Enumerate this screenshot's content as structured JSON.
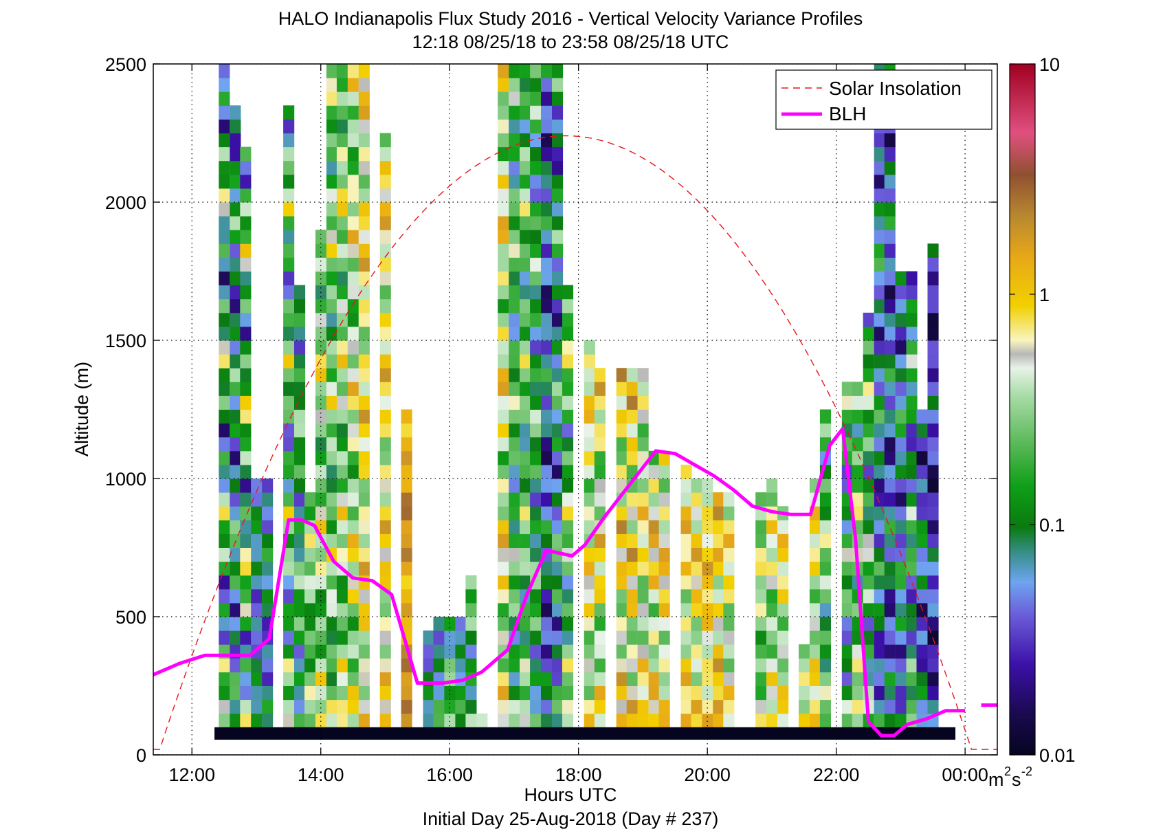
{
  "chart_data": {
    "type": "heatmap",
    "title": "HALO Indianapolis Flux Study 2016 - Vertical Velocity Variance Profiles",
    "subtitle": "12:18 08/25/18 to 23:58 08/25/18  UTC",
    "xlabel": "Hours UTC",
    "xlabel2": "Initial Day 25-Aug-2018 (Day # 237)",
    "ylabel": "Altitude (m)",
    "xlim": [
      11.4,
      24.5
    ],
    "ylim": [
      0,
      2500
    ],
    "x_ticks": [
      12,
      14,
      16,
      18,
      20,
      22,
      24
    ],
    "x_tick_labels": [
      "12:00",
      "14:00",
      "16:00",
      "18:00",
      "20:00",
      "22:00",
      "00:00"
    ],
    "y_ticks": [
      0,
      500,
      1000,
      1500,
      2000,
      2500
    ],
    "y_tick_labels": [
      "0",
      "500",
      "1000",
      "1500",
      "2000",
      "2500"
    ],
    "grid": true,
    "legend_position": "top-right",
    "legend": [
      {
        "label": "Solar Insolation",
        "color": "#e8161a",
        "style": "dashed"
      },
      {
        "label": "BLH",
        "color": "#ff00ff",
        "style": "solid"
      }
    ],
    "colorbar": {
      "scale": "log",
      "range": [
        0.01,
        10
      ],
      "ticks": [
        0.01,
        0.1,
        1,
        10
      ],
      "tick_labels": [
        "0.01",
        "0.1",
        "1",
        "10"
      ],
      "unit_label": "m²s⁻²",
      "unit_base": "m",
      "unit_exp1": "2",
      "unit_mid": "s",
      "unit_exp2": "-2"
    },
    "bin_height_m": 50,
    "profile_width_h": 0.166,
    "profiles": [
      {
        "t": 12.5,
        "top": 2500,
        "base_log": -0.9,
        "amp": 0.9,
        "phase": 0.2
      },
      {
        "t": 12.67,
        "top": 2350,
        "base_log": -1.1,
        "amp": 0.7,
        "phase": 1.1
      },
      {
        "t": 12.83,
        "top": 2200,
        "base_log": -0.8,
        "amp": 0.9,
        "phase": 2.3
      },
      {
        "t": 13.0,
        "top": 1000,
        "base_log": -1.2,
        "amp": 0.4,
        "phase": 0.7
      },
      {
        "t": 13.17,
        "top": 1000,
        "base_log": -1.2,
        "amp": 0.5,
        "phase": 1.9
      },
      {
        "t": 13.5,
        "top": 2350,
        "base_log": -0.8,
        "amp": 0.8,
        "phase": 0.4
      },
      {
        "t": 13.67,
        "top": 1700,
        "base_log": -0.9,
        "amp": 0.6,
        "phase": 2.9
      },
      {
        "t": 13.83,
        "top": 950,
        "base_log": -0.6,
        "amp": 0.5,
        "phase": 1.4
      },
      {
        "t": 14.0,
        "top": 1900,
        "base_log": -0.5,
        "amp": 0.6,
        "phase": 0.8
      },
      {
        "t": 14.17,
        "top": 2500,
        "base_log": -0.6,
        "amp": 0.6,
        "phase": 2.0
      },
      {
        "t": 14.33,
        "top": 2500,
        "base_log": -0.5,
        "amp": 0.6,
        "phase": 0.3
      },
      {
        "t": 14.5,
        "top": 2500,
        "base_log": -0.4,
        "amp": 0.6,
        "phase": 1.6
      },
      {
        "t": 14.67,
        "top": 2500,
        "base_log": -0.2,
        "amp": 0.5,
        "phase": 2.6
      },
      {
        "t": 15.0,
        "top": 2250,
        "base_log": -0.2,
        "amp": 0.5,
        "phase": 0.9
      },
      {
        "t": 15.33,
        "top": 1250,
        "base_log": 0.2,
        "amp": 0.3,
        "phase": 0.1
      },
      {
        "t": 15.67,
        "top": 450,
        "base_log": -1.2,
        "amp": 0.4,
        "phase": 1.2
      },
      {
        "t": 15.83,
        "top": 500,
        "base_log": -1.0,
        "amp": 0.5,
        "phase": 2.2
      },
      {
        "t": 16.0,
        "top": 500,
        "base_log": -0.9,
        "amp": 0.6,
        "phase": 0.6
      },
      {
        "t": 16.17,
        "top": 500,
        "base_log": -1.0,
        "amp": 0.4,
        "phase": 1.8
      },
      {
        "t": 16.33,
        "top": 650,
        "base_log": -0.8,
        "amp": 0.6,
        "phase": 2.7
      },
      {
        "t": 16.5,
        "top": 150,
        "base_log": -0.6,
        "amp": 0.3,
        "phase": 0.5
      },
      {
        "t": 16.83,
        "top": 2500,
        "base_log": -0.3,
        "amp": 0.6,
        "phase": 1.3
      },
      {
        "t": 17.0,
        "top": 2500,
        "base_log": -0.8,
        "amp": 0.6,
        "phase": 2.1
      },
      {
        "t": 17.17,
        "top": 2500,
        "base_log": -0.7,
        "amp": 0.6,
        "phase": 0.4
      },
      {
        "t": 17.33,
        "top": 2500,
        "base_log": -0.9,
        "amp": 0.6,
        "phase": 2.8
      },
      {
        "t": 17.5,
        "top": 2500,
        "base_log": -1.3,
        "amp": 0.6,
        "phase": 1.0
      },
      {
        "t": 17.67,
        "top": 2500,
        "base_log": -1.1,
        "amp": 0.7,
        "phase": 1.7
      },
      {
        "t": 17.83,
        "top": 1700,
        "base_log": -0.7,
        "amp": 0.7,
        "phase": 0.2
      },
      {
        "t": 18.17,
        "top": 1500,
        "base_log": -0.3,
        "amp": 0.5,
        "phase": 2.4
      },
      {
        "t": 18.33,
        "top": 1400,
        "base_log": -0.3,
        "amp": 0.6,
        "phase": 1.5
      },
      {
        "t": 18.67,
        "top": 1400,
        "base_log": -0.2,
        "amp": 0.6,
        "phase": 0.9
      },
      {
        "t": 18.83,
        "top": 1400,
        "base_log": -0.2,
        "amp": 0.6,
        "phase": 2.0
      },
      {
        "t": 19.0,
        "top": 1400,
        "base_log": -0.3,
        "amp": 0.5,
        "phase": 0.3
      },
      {
        "t": 19.17,
        "top": 1100,
        "base_log": -0.2,
        "amp": 0.6,
        "phase": 1.1
      },
      {
        "t": 19.33,
        "top": 1100,
        "base_log": -0.2,
        "amp": 0.5,
        "phase": 2.2
      },
      {
        "t": 19.67,
        "top": 1050,
        "base_log": -0.2,
        "amp": 0.5,
        "phase": 0.7
      },
      {
        "t": 19.83,
        "top": 1000,
        "base_log": -0.2,
        "amp": 0.5,
        "phase": 1.9
      },
      {
        "t": 20.0,
        "top": 1000,
        "base_log": -0.1,
        "amp": 0.4,
        "phase": 2.6
      },
      {
        "t": 20.17,
        "top": 950,
        "base_log": -0.1,
        "amp": 0.5,
        "phase": 0.2
      },
      {
        "t": 20.33,
        "top": 950,
        "base_log": -0.3,
        "amp": 0.5,
        "phase": 1.4
      },
      {
        "t": 20.83,
        "top": 950,
        "base_log": -0.5,
        "amp": 0.5,
        "phase": 2.3
      },
      {
        "t": 21.0,
        "top": 1000,
        "base_log": -0.4,
        "amp": 0.5,
        "phase": 0.8
      },
      {
        "t": 21.17,
        "top": 900,
        "base_log": -0.3,
        "amp": 0.5,
        "phase": 1.6
      },
      {
        "t": 21.5,
        "top": 400,
        "base_log": -0.2,
        "amp": 0.5,
        "phase": 2.9
      },
      {
        "t": 21.67,
        "top": 1000,
        "base_log": -0.3,
        "amp": 0.5,
        "phase": 0.5
      },
      {
        "t": 21.83,
        "top": 1250,
        "base_log": -0.7,
        "amp": 0.6,
        "phase": 1.3
      },
      {
        "t": 22.17,
        "top": 1350,
        "base_log": -0.9,
        "amp": 0.7,
        "phase": 2.0
      },
      {
        "t": 22.33,
        "top": 1350,
        "base_log": -0.6,
        "amp": 0.6,
        "phase": 0.1
      },
      {
        "t": 22.5,
        "top": 1600,
        "base_log": -0.8,
        "amp": 0.7,
        "phase": 1.7
      },
      {
        "t": 22.67,
        "top": 2550,
        "base_log": -1.2,
        "amp": 0.6,
        "phase": 2.5
      },
      {
        "t": 22.83,
        "top": 2500,
        "base_log": -1.3,
        "amp": 0.6,
        "phase": 0.9
      },
      {
        "t": 23.0,
        "top": 1750,
        "base_log": -1.2,
        "amp": 0.6,
        "phase": 2.8
      },
      {
        "t": 23.17,
        "top": 1750,
        "base_log": -1.0,
        "amp": 0.7,
        "phase": 0.4
      },
      {
        "t": 23.33,
        "top": 1250,
        "base_log": -1.3,
        "amp": 0.6,
        "phase": 1.2
      },
      {
        "t": 23.5,
        "top": 1850,
        "base_log": -1.5,
        "amp": 0.5,
        "phase": 2.1
      }
    ],
    "surface_layer": {
      "x_start": 12.35,
      "x_end": 23.85,
      "value": 0.01
    },
    "blh": {
      "x": [
        11.4,
        11.8,
        12.2,
        12.6,
        12.9,
        13.2,
        13.5,
        13.7,
        13.9,
        14.2,
        14.5,
        14.8,
        15.1,
        15.5,
        15.9,
        16.2,
        16.5,
        16.9,
        17.2,
        17.5,
        17.7,
        17.9,
        18.1,
        18.4,
        18.8,
        19.2,
        19.5,
        19.8,
        20.1,
        20.4,
        20.7,
        21.0,
        21.3,
        21.6,
        21.9,
        22.1,
        22.3,
        22.5,
        22.7,
        22.9,
        23.1,
        23.4,
        23.7,
        24.0
      ],
      "y": [
        290,
        330,
        360,
        360,
        360,
        420,
        850,
        850,
        830,
        700,
        640,
        630,
        580,
        260,
        260,
        270,
        300,
        380,
        580,
        740,
        730,
        720,
        760,
        860,
        980,
        1100,
        1090,
        1050,
        1010,
        960,
        900,
        880,
        870,
        870,
        1120,
        1180,
        780,
        120,
        70,
        70,
        110,
        130,
        160,
        160
      ]
    },
    "blh_tail": {
      "x": [
        24.25,
        24.5
      ],
      "y": [
        180,
        180
      ]
    },
    "solar_insolation": {
      "peak_x": 17.8,
      "peak_y": 2240,
      "half_width_h": 6.3,
      "floor_y": 20
    }
  }
}
